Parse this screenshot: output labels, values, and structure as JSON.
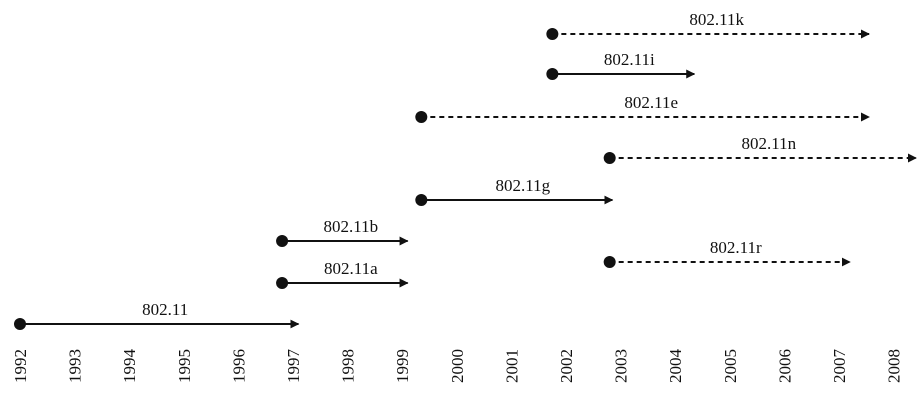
{
  "years": [
    "1992",
    "1993",
    "1994",
    "1995",
    "1996",
    "1997",
    "1998",
    "1999",
    "2000",
    "2001",
    "2002",
    "2003",
    "2004",
    "2005",
    "2006",
    "2007",
    "2008"
  ],
  "standards": [
    {
      "label": "802.11k",
      "start": 2001.75,
      "end": 2007.55,
      "style": "dashed"
    },
    {
      "label": "802.11i",
      "start": 2001.75,
      "end": 2004.35,
      "style": "solid"
    },
    {
      "label": "802.11e",
      "start": 1999.35,
      "end": 2007.55,
      "style": "dashed"
    },
    {
      "label": "802.11n",
      "start": 2002.8,
      "end": 2008.6,
      "style": "dashed"
    },
    {
      "label": "802.11g",
      "start": 1999.35,
      "end": 2002.85,
      "style": "solid"
    },
    {
      "label": "802.11b",
      "start": 1996.8,
      "end": 1999.1,
      "style": "solid"
    },
    {
      "label": "802.11a",
      "start": 1996.8,
      "end": 1999.1,
      "style": "solid"
    },
    {
      "label": "802.11r",
      "start": 2002.8,
      "end": 2007.2,
      "style": "dashed"
    },
    {
      "label": "802.11",
      "start": 1992.0,
      "end": 1997.1,
      "style": "solid"
    }
  ],
  "colors": {
    "ink": "#111111",
    "background": "#ffffff"
  }
}
